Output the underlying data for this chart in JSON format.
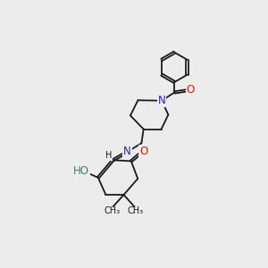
{
  "bg": "#ececec",
  "bc": "#1a1a1a",
  "NC": "#2222cc",
  "OC": "#cc2200",
  "OHCO": "#2e8b57",
  "bw": 1.3,
  "dbo": 0.042,
  "fs": 8.5,
  "fss": 7.0,
  "xlim": [
    0,
    10
  ],
  "ylim": [
    0,
    10
  ]
}
